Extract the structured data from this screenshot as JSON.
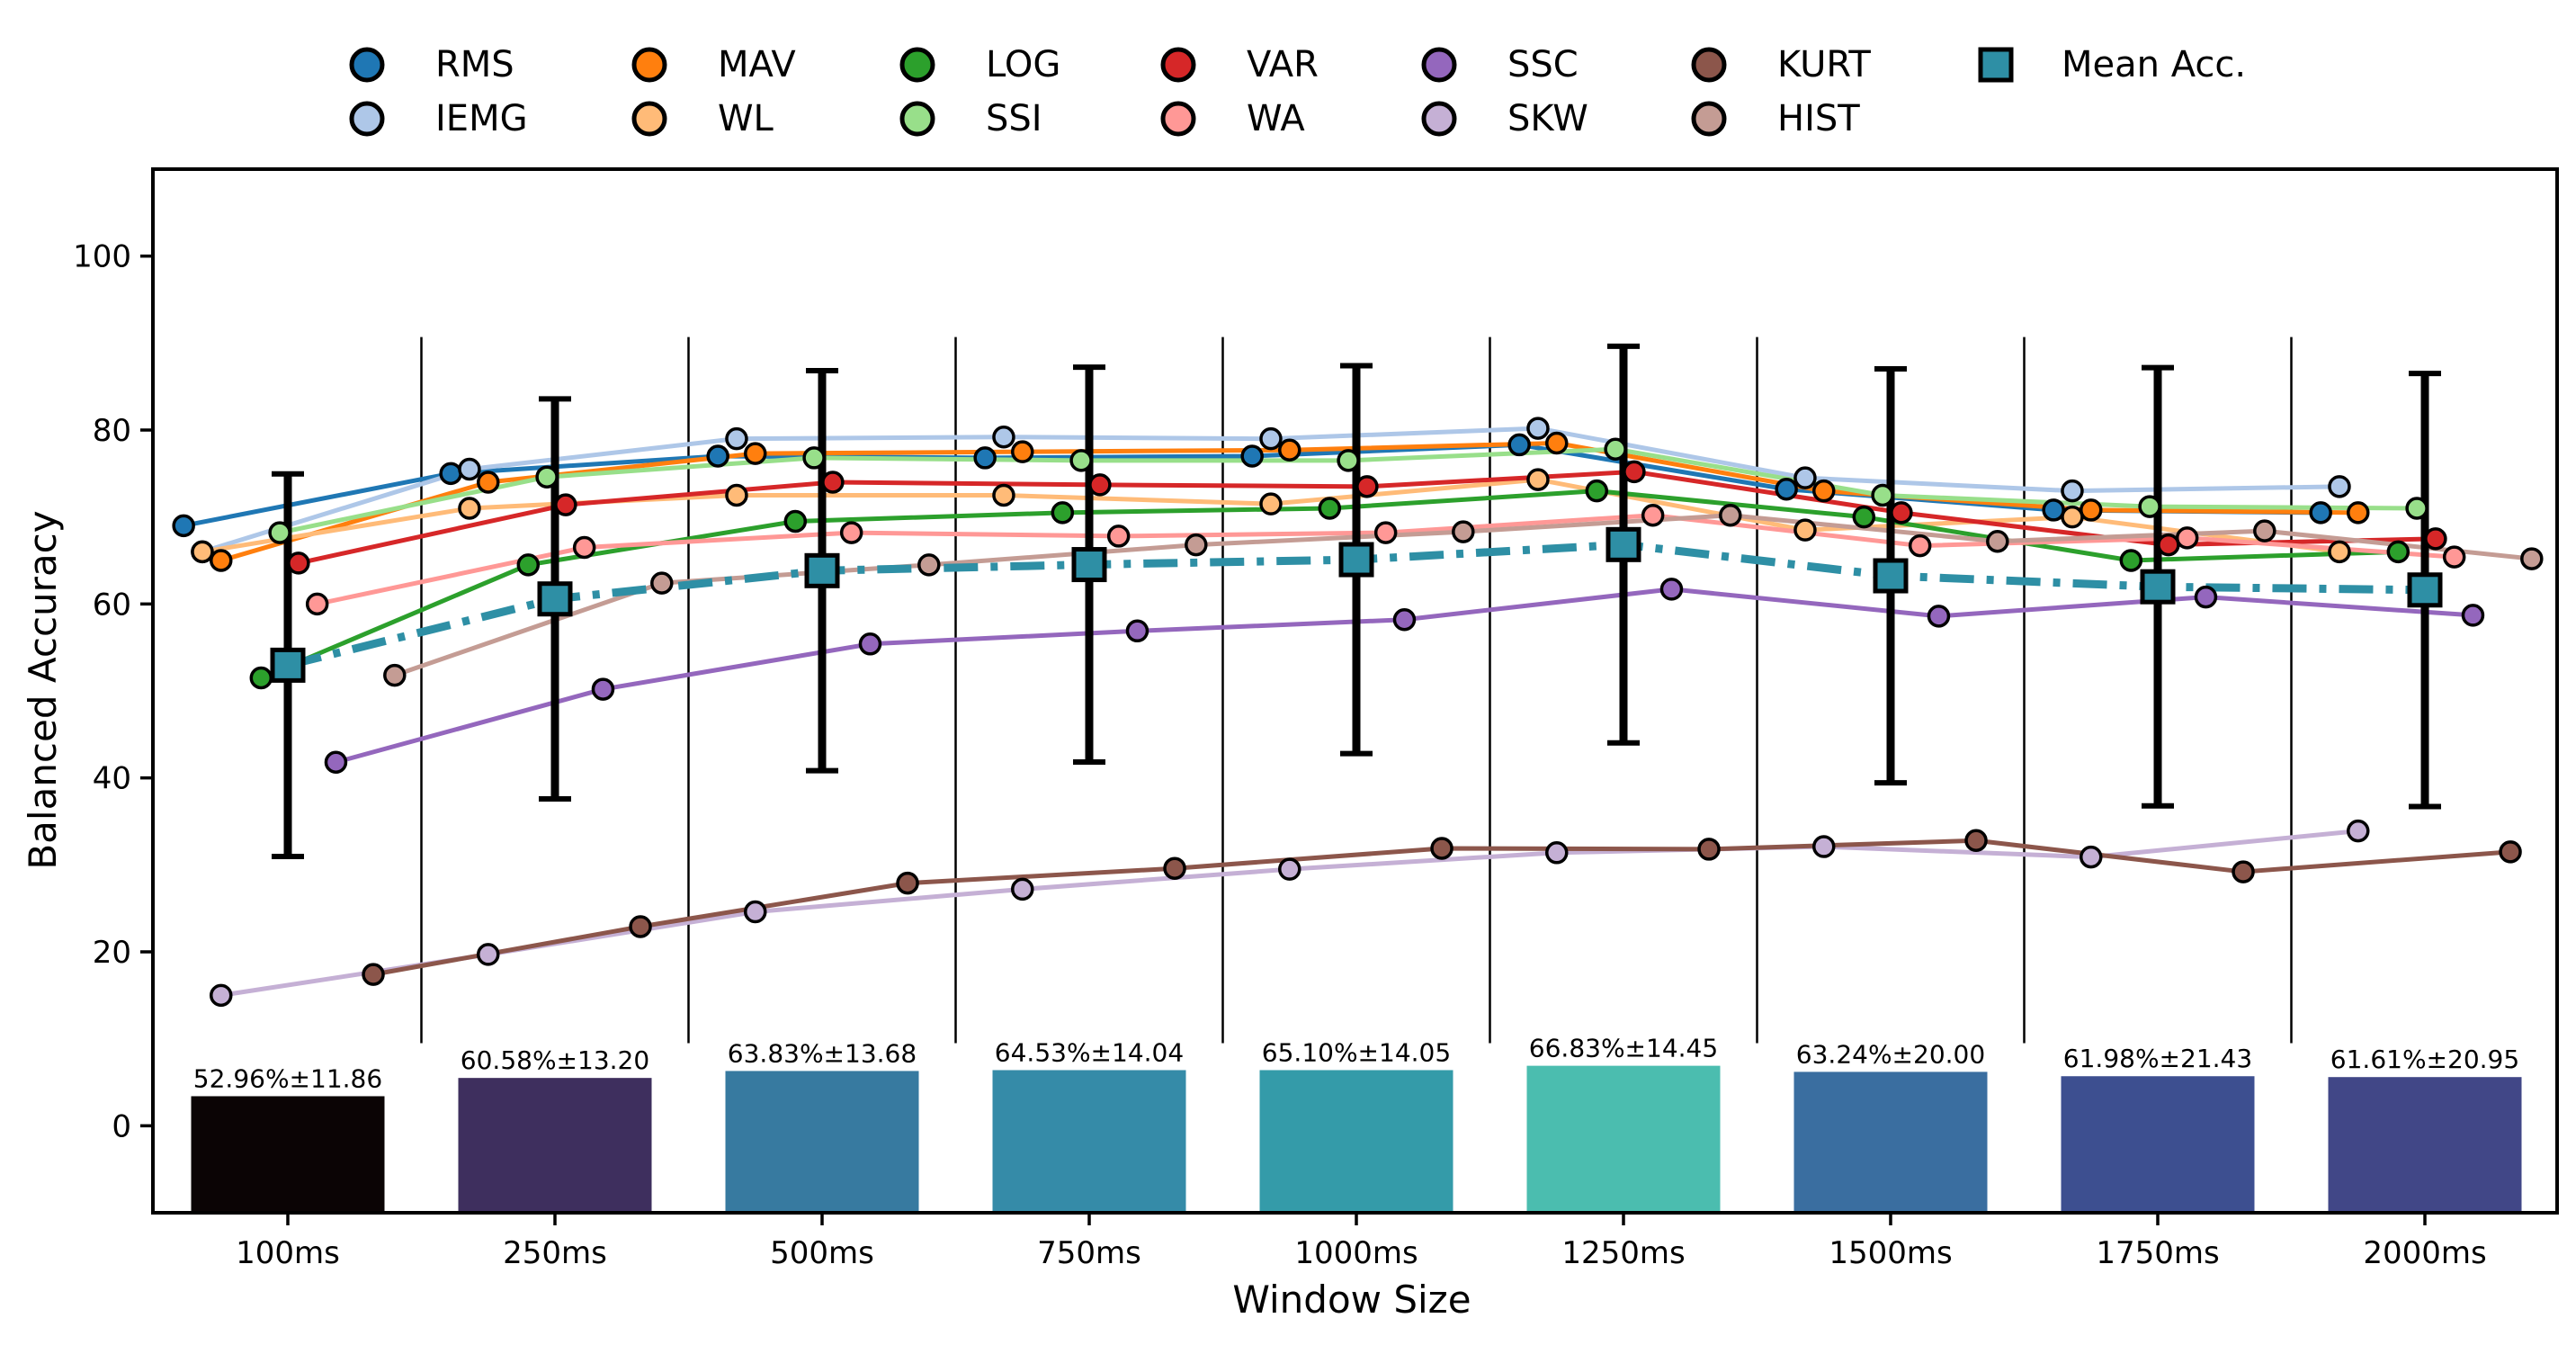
{
  "chart_data": {
    "type": "line",
    "title": "",
    "xlabel": "Window Size",
    "ylabel": "Balanced Accuracy",
    "ylim": [
      -10,
      110
    ],
    "yticks": [
      0,
      20,
      40,
      60,
      80,
      100
    ],
    "categories": [
      "100ms",
      "250ms",
      "500ms",
      "750ms",
      "1000ms",
      "1250ms",
      "1500ms",
      "1750ms",
      "2000ms"
    ],
    "legend_position": "top-center",
    "series": [
      {
        "name": "RMS",
        "color": "#1f77b4",
        "offset": -0.39,
        "values": [
          69,
          75,
          77,
          76.8,
          77,
          78.3,
          73.2,
          70.8,
          70.5
        ]
      },
      {
        "name": "IEMG",
        "color": "#aec7e8",
        "offset": -0.32,
        "values": [
          66,
          75.5,
          79,
          79.2,
          79,
          80.2,
          74.5,
          73,
          73.5
        ]
      },
      {
        "name": "MAV",
        "color": "#ff7f0e",
        "offset": -0.25,
        "values": [
          65,
          74,
          77.3,
          77.5,
          77.7,
          78.5,
          73,
          70.8,
          70.5
        ]
      },
      {
        "name": "WL",
        "color": "#ffbb78",
        "offset": -0.32,
        "values": [
          66,
          71,
          72.5,
          72.5,
          71.5,
          74.3,
          68.5,
          70,
          66
        ]
      },
      {
        "name": "LOG",
        "color": "#2ca02c",
        "offset": -0.1,
        "values": [
          51.5,
          64.5,
          69.5,
          70.5,
          71,
          73,
          70,
          65,
          66
        ]
      },
      {
        "name": "SSI",
        "color": "#98df8a",
        "offset": -0.03,
        "values": [
          68.2,
          74.6,
          76.8,
          76.5,
          76.5,
          77.8,
          72.5,
          71.2,
          71
        ]
      },
      {
        "name": "VAR",
        "color": "#d62728",
        "offset": 0.04,
        "values": [
          64.7,
          71.4,
          74,
          73.7,
          73.5,
          75.2,
          70.5,
          66.8,
          67.5
        ]
      },
      {
        "name": "WA",
        "color": "#ff9896",
        "offset": 0.11,
        "values": [
          60,
          66.5,
          68.2,
          67.8,
          68.2,
          70.2,
          66.7,
          67.6,
          65.4
        ]
      },
      {
        "name": "SSC",
        "color": "#9467bd",
        "offset": 0.18,
        "values": [
          41.8,
          50.2,
          55.4,
          56.9,
          58.2,
          61.7,
          58.6,
          60.8,
          58.7
        ]
      },
      {
        "name": "SKW",
        "color": "#c5b0d5",
        "offset": -0.25,
        "values": [
          15,
          19.7,
          24.6,
          27.2,
          29.5,
          31.4,
          32.1,
          30.9,
          33.9
        ]
      },
      {
        "name": "KURT",
        "color": "#8c564b",
        "offset": 0.32,
        "values": [
          17.4,
          22.9,
          27.9,
          29.6,
          31.9,
          31.8,
          32.8,
          29.2,
          31.5
        ]
      },
      {
        "name": "HIST",
        "color": "#c49c94",
        "offset": 0.4,
        "values": [
          51.8,
          62.4,
          64.5,
          66.8,
          68.3,
          70.2,
          67.2,
          68.4,
          65.2
        ]
      }
    ],
    "mean": {
      "name": "Mean Acc.",
      "color": "#2e8fa5",
      "values": [
        52.96,
        60.58,
        63.83,
        64.53,
        65.1,
        66.83,
        63.24,
        61.98,
        61.61
      ],
      "err": [
        22,
        23,
        23,
        22.7,
        22.3,
        22.8,
        23.8,
        25.2,
        24.9
      ]
    },
    "bars": {
      "labels": [
        "52.96%±11.86",
        "60.58%±13.20",
        "63.83%±13.68",
        "64.53%±14.04",
        "65.10%±14.05",
        "66.83%±14.45",
        "63.24%±20.00",
        "61.98%±21.43",
        "61.61%±20.95"
      ],
      "heights": [
        3.4,
        5.5,
        6.3,
        6.4,
        6.4,
        6.9,
        6.2,
        5.7,
        5.6
      ],
      "colors": [
        "#0b0405",
        "#3e2f5e",
        "#377aa0",
        "#358ba8",
        "#349ba9",
        "#4bbdaf",
        "#3a6ea0",
        "#3d4f90",
        "#414787"
      ]
    }
  }
}
